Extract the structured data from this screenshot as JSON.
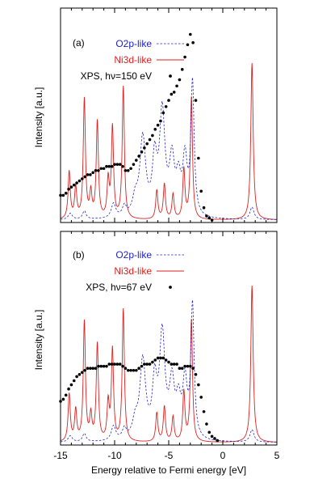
{
  "figure": {
    "xlabel": "Energy relative to Fermi energy [eV]",
    "x_ticks": [
      "-15",
      "-10",
      "-5",
      "0",
      "5"
    ],
    "colors": {
      "o2p": "#2222cc",
      "ni3d": "#dd2222",
      "xps": "#000000"
    }
  },
  "chart_data": [
    {
      "type": "line",
      "panel_label": "(a)",
      "ylabel": "Intensity [a.u.]",
      "xlim": [
        -15,
        5
      ],
      "ylim": [
        0,
        1
      ],
      "grid": false,
      "legend_position": "top-left",
      "series": [
        {
          "name": "O2p-like",
          "style": "dashed",
          "peaks": [
            [
              -14.1,
              0.03,
              0.22
            ],
            [
              -12.8,
              0.04,
              0.2
            ],
            [
              -10.1,
              0.07,
              0.25
            ],
            [
              -9.1,
              0.05,
              0.22
            ],
            [
              -8.1,
              0.08,
              0.3
            ],
            [
              -7.4,
              0.38,
              0.32
            ],
            [
              -6.3,
              0.26,
              0.25
            ],
            [
              -5.6,
              0.5,
              0.3
            ],
            [
              -4.7,
              0.26,
              0.28
            ],
            [
              -4.1,
              0.16,
              0.25
            ],
            [
              -3.5,
              0.27,
              0.25
            ],
            [
              -2.8,
              0.64,
              0.18
            ],
            [
              2.7,
              0.06,
              0.22
            ]
          ]
        },
        {
          "name": "Ni3d-like",
          "style": "solid",
          "peaks": [
            [
              -14.2,
              0.23,
              0.12
            ],
            [
              -13.6,
              0.15,
              0.12
            ],
            [
              -12.8,
              0.58,
              0.12
            ],
            [
              -12.2,
              0.12,
              0.12
            ],
            [
              -11.6,
              0.47,
              0.12
            ],
            [
              -10.6,
              0.18,
              0.12
            ],
            [
              -10.2,
              0.44,
              0.12
            ],
            [
              -9.2,
              0.64,
              0.12
            ],
            [
              -6.1,
              0.14,
              0.12
            ],
            [
              -5.4,
              0.17,
              0.12
            ],
            [
              -4.6,
              0.12,
              0.12
            ],
            [
              -3.6,
              0.24,
              0.12
            ],
            [
              -2.9,
              0.59,
              0.12
            ],
            [
              2.7,
              0.76,
              0.13
            ]
          ]
        },
        {
          "name": "XPS, hν=150 eV",
          "style": "points",
          "x": [
            -15.0,
            -14.75,
            -14.5,
            -14.25,
            -14.0,
            -13.75,
            -13.5,
            -13.25,
            -13.0,
            -12.75,
            -12.5,
            -12.25,
            -12.0,
            -11.75,
            -11.5,
            -11.25,
            -11.0,
            -10.75,
            -10.5,
            -10.25,
            -10.0,
            -9.75,
            -9.5,
            -9.25,
            -9.0,
            -8.75,
            -8.5,
            -8.25,
            -8.0,
            -7.75,
            -7.5,
            -7.25,
            -7.0,
            -6.75,
            -6.5,
            -6.25,
            -6.0,
            -5.75,
            -5.5,
            -5.25,
            -5.0,
            -4.75,
            -4.5,
            -4.25,
            -4.0,
            -3.75,
            -3.5,
            -3.25,
            -3.0,
            -2.75,
            -2.5,
            -2.25,
            -2.0,
            -1.75,
            -1.5,
            -1.25,
            -1.0
          ],
          "y": [
            0.12,
            0.12,
            0.13,
            0.15,
            0.16,
            0.17,
            0.18,
            0.19,
            0.2,
            0.21,
            0.22,
            0.22,
            0.23,
            0.24,
            0.24,
            0.25,
            0.25,
            0.26,
            0.26,
            0.26,
            0.27,
            0.27,
            0.27,
            0.26,
            0.24,
            0.24,
            0.25,
            0.27,
            0.29,
            0.31,
            0.33,
            0.35,
            0.37,
            0.39,
            0.41,
            0.44,
            0.46,
            0.48,
            0.52,
            0.55,
            0.58,
            0.61,
            0.62,
            0.65,
            0.68,
            0.73,
            0.79,
            0.85,
            0.9,
            0.86,
            0.58,
            0.3,
            0.14,
            0.06,
            0.02,
            0.01,
            0.0
          ]
        }
      ]
    },
    {
      "type": "line",
      "panel_label": "(b)",
      "ylabel": "Intensity [a.u.]",
      "xlim": [
        -15,
        5
      ],
      "ylim": [
        0,
        1
      ],
      "grid": false,
      "legend_position": "top-left",
      "series": [
        {
          "name": "O2p-like",
          "style": "dashed",
          "peaks": [
            [
              -14.1,
              0.03,
              0.22
            ],
            [
              -12.8,
              0.04,
              0.2
            ],
            [
              -10.1,
              0.07,
              0.25
            ],
            [
              -9.1,
              0.05,
              0.22
            ],
            [
              -8.1,
              0.08,
              0.3
            ],
            [
              -7.4,
              0.38,
              0.32
            ],
            [
              -6.3,
              0.26,
              0.25
            ],
            [
              -5.6,
              0.5,
              0.3
            ],
            [
              -4.7,
              0.26,
              0.28
            ],
            [
              -4.1,
              0.16,
              0.25
            ],
            [
              -3.5,
              0.27,
              0.25
            ],
            [
              -2.8,
              0.64,
              0.18
            ],
            [
              2.7,
              0.06,
              0.22
            ]
          ]
        },
        {
          "name": "Ni3d-like",
          "style": "solid",
          "peaks": [
            [
              -14.2,
              0.23,
              0.12
            ],
            [
              -13.6,
              0.15,
              0.12
            ],
            [
              -12.8,
              0.58,
              0.12
            ],
            [
              -12.2,
              0.12,
              0.12
            ],
            [
              -11.6,
              0.47,
              0.12
            ],
            [
              -10.6,
              0.18,
              0.12
            ],
            [
              -10.2,
              0.44,
              0.12
            ],
            [
              -9.2,
              0.64,
              0.12
            ],
            [
              -6.1,
              0.14,
              0.12
            ],
            [
              -5.4,
              0.17,
              0.12
            ],
            [
              -4.6,
              0.12,
              0.12
            ],
            [
              -3.6,
              0.24,
              0.12
            ],
            [
              -2.9,
              0.59,
              0.12
            ],
            [
              2.7,
              0.76,
              0.13
            ]
          ]
        },
        {
          "name": "XPS, hν=67 eV",
          "style": "points",
          "x": [
            -15.0,
            -14.75,
            -14.5,
            -14.25,
            -14.0,
            -13.75,
            -13.5,
            -13.25,
            -13.0,
            -12.75,
            -12.5,
            -12.25,
            -12.0,
            -11.75,
            -11.5,
            -11.25,
            -11.0,
            -10.75,
            -10.5,
            -10.25,
            -10.0,
            -9.75,
            -9.5,
            -9.25,
            -9.0,
            -8.75,
            -8.5,
            -8.25,
            -8.0,
            -7.75,
            -7.5,
            -7.25,
            -7.0,
            -6.75,
            -6.5,
            -6.25,
            -6.0,
            -5.75,
            -5.5,
            -5.25,
            -5.0,
            -4.75,
            -4.5,
            -4.25,
            -4.0,
            -3.75,
            -3.5,
            -3.25,
            -3.0,
            -2.75,
            -2.5,
            -2.25,
            -2.0,
            -1.75,
            -1.5,
            -1.25,
            -1.0,
            -0.75,
            -0.5
          ],
          "y": [
            0.2,
            0.21,
            0.23,
            0.26,
            0.28,
            0.3,
            0.32,
            0.33,
            0.34,
            0.35,
            0.36,
            0.36,
            0.36,
            0.36,
            0.37,
            0.37,
            0.37,
            0.37,
            0.38,
            0.38,
            0.38,
            0.38,
            0.38,
            0.37,
            0.36,
            0.35,
            0.35,
            0.35,
            0.35,
            0.36,
            0.37,
            0.38,
            0.38,
            0.38,
            0.39,
            0.4,
            0.41,
            0.41,
            0.41,
            0.4,
            0.39,
            0.38,
            0.38,
            0.38,
            0.36,
            0.36,
            0.37,
            0.37,
            0.37,
            0.36,
            0.33,
            0.28,
            0.22,
            0.15,
            0.09,
            0.05,
            0.03,
            0.02,
            0.01
          ]
        }
      ]
    }
  ]
}
